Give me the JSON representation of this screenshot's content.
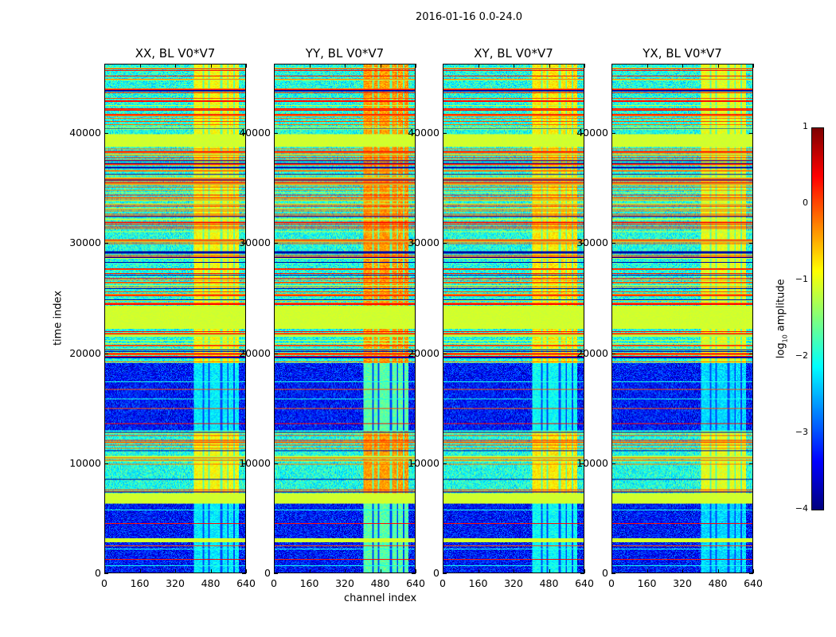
{
  "chart_data": {
    "type": "heatmap",
    "title": "2016-01-16 0.0-24.0",
    "xlabel": "channel index",
    "ylabel": "time index",
    "xlim": [
      0,
      640
    ],
    "ylim": [
      0,
      46300
    ],
    "xticks": [
      "0",
      "160",
      "320",
      "480",
      "640"
    ],
    "xtick_values": [
      0,
      160,
      320,
      480,
      640
    ],
    "yticks": [
      "0",
      "10000",
      "20000",
      "30000",
      "40000"
    ],
    "ytick_values": [
      0,
      10000,
      20000,
      30000,
      40000
    ],
    "colormap": "jet",
    "colorbar": {
      "label_main": "log",
      "label_sub": "10",
      "label_rest": " amplitude",
      "range": [
        -4,
        1
      ],
      "ticks": [
        "1",
        "0",
        "−1",
        "−2",
        "−3",
        "−4"
      ],
      "tick_values": [
        1,
        0,
        -1,
        -2,
        -3,
        -4
      ]
    },
    "panels": [
      {
        "title": "XX, BL V0*V7",
        "seed": 11,
        "bright_boost": 1.1
      },
      {
        "title": "YY, BL V0*V7",
        "seed": 23,
        "bright_boost": 1.6
      },
      {
        "title": "XY, BL V0*V7",
        "seed": 37,
        "bright_boost": 1.2
      },
      {
        "title": "YX, BL V0*V7",
        "seed": 51,
        "bright_boost": 1.0
      }
    ],
    "flat_bands": [
      {
        "from": 22200,
        "to": 24200,
        "level": -1.1
      },
      {
        "from": 38800,
        "to": 39900,
        "level": -1.1
      },
      {
        "from": 6300,
        "to": 7200,
        "level": -1.1
      },
      {
        "from": 2750,
        "to": 3100,
        "level": -1.1
      }
    ],
    "quiet_regions": [
      {
        "from": 0,
        "to": 6300,
        "level": -3.3
      },
      {
        "from": 12900,
        "to": 19100,
        "level": -3.3
      }
    ],
    "active_level": -2.0,
    "bright_channels": [
      405,
      610
    ],
    "dark_channel_gaps": [
      450,
      475,
      530,
      560,
      590
    ]
  }
}
